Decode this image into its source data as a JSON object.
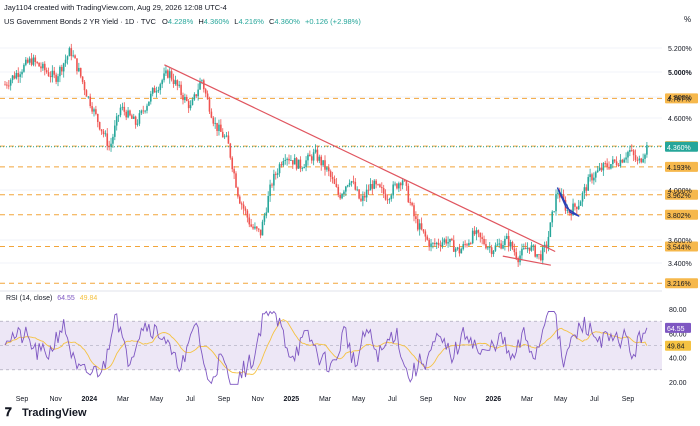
{
  "header": {
    "author_line": "Jay1104 created with TradingView.com, Aug 29, 2026 12:08 UTC-4",
    "symbol": "US Government Bonds 2 YR Yield · 1D · TVC",
    "ohlc": [
      {
        "key": "O",
        "value": "4.228%"
      },
      {
        "key": "H",
        "value": "4.360%"
      },
      {
        "key": "L",
        "value": "4.216%"
      },
      {
        "key": "C",
        "value": "4.360%"
      }
    ],
    "change": "+0.126 (+2.98%)",
    "change_color": "#26a69a",
    "currency_marker": "%"
  },
  "rsi_header": {
    "label": "RSI (14, close)",
    "rsi_value": "64.55",
    "ma_value": "49.84"
  },
  "footer": {
    "brand": "TradingView"
  },
  "colors": {
    "up": "#26a69a",
    "down": "#ef5350",
    "trend": "#e0555f",
    "level": "#f2a53a",
    "level_tag": "#f6b84c",
    "current": "#26a69a",
    "flag": "#2a3fb5",
    "rsi": "#7e57c2",
    "rsi_ma": "#f5c242",
    "rsi_band": "#ede7f6"
  },
  "chart_data": [
    {
      "type": "candlestick",
      "title": "US Government Bonds 2 YR Yield · 1D · TVC",
      "x_ticks": [
        "Sep",
        "Nov",
        "2024",
        "Mar",
        "May",
        "Jul",
        "Sep",
        "Nov",
        "2025",
        "Mar",
        "May",
        "Jul",
        "Sep",
        "Nov",
        "2026",
        "Mar",
        "May",
        "Jul",
        "Sep"
      ],
      "y_tick_labels": [
        "5.200%",
        "4.800%",
        "4.600%",
        "4.000%",
        "3.600%",
        "3.400%"
      ],
      "ylim": [
        3.2,
        5.35
      ],
      "last_price": {
        "value": 4.36,
        "label": "4.360%"
      },
      "highlighted_price": {
        "value": 5.0,
        "label": "5.000%"
      },
      "horizontal_levels": [
        {
          "value": 4.787,
          "label": "4.787%"
        },
        {
          "value": 4.366,
          "label": "4.366%"
        },
        {
          "value": 4.193,
          "label": "4.193%"
        },
        {
          "value": 3.962,
          "label": "3.962%"
        },
        {
          "value": 3.802,
          "label": "3.802%"
        },
        {
          "value": 3.544,
          "label": "3.544%"
        },
        {
          "value": 3.216,
          "label": "3.216%"
        }
      ],
      "price_path": [
        [
          0,
          4.9
        ],
        [
          1.2,
          5.1
        ],
        [
          2.3,
          4.95
        ],
        [
          3.0,
          5.18
        ],
        [
          3.5,
          4.95
        ],
        [
          4.2,
          4.6
        ],
        [
          4.8,
          4.35
        ],
        [
          5.3,
          4.7
        ],
        [
          6.0,
          4.55
        ],
        [
          6.8,
          4.85
        ],
        [
          7.5,
          5.0
        ],
        [
          8.0,
          4.85
        ],
        [
          8.5,
          4.7
        ],
        [
          9.0,
          4.95
        ],
        [
          9.6,
          4.55
        ],
        [
          10.2,
          4.4
        ],
        [
          10.7,
          3.95
        ],
        [
          11.3,
          3.7
        ],
        [
          11.7,
          3.65
        ],
        [
          12.2,
          4.05
        ],
        [
          12.8,
          4.3
        ],
        [
          13.5,
          4.2
        ],
        [
          14.2,
          4.3
        ],
        [
          14.8,
          4.15
        ],
        [
          15.3,
          3.95
        ],
        [
          15.8,
          4.1
        ],
        [
          16.3,
          3.9
        ],
        [
          16.8,
          4.05
        ],
        [
          17.5,
          3.95
        ],
        [
          18.2,
          4.1
        ],
        [
          18.8,
          3.75
        ],
        [
          19.5,
          3.55
        ],
        [
          20.2,
          3.6
        ],
        [
          20.8,
          3.5
        ],
        [
          21.5,
          3.65
        ],
        [
          22.3,
          3.52
        ],
        [
          23.0,
          3.6
        ],
        [
          23.5,
          3.45
        ],
        [
          24.0,
          3.55
        ],
        [
          24.5,
          3.45
        ],
        [
          24.8,
          3.55
        ],
        [
          25.3,
          4.0
        ],
        [
          25.8,
          3.82
        ],
        [
          26.3,
          3.9
        ],
        [
          26.8,
          4.1
        ],
        [
          27.5,
          4.2
        ],
        [
          28.2,
          4.25
        ],
        [
          28.6,
          4.33
        ],
        [
          29.0,
          4.22
        ],
        [
          29.4,
          4.36
        ]
      ],
      "trendlines": [
        {
          "name": "descending-trendline",
          "from": {
            "x": 7.3,
            "y": 5.06
          },
          "to": {
            "x": 25.2,
            "y": 3.5
          }
        },
        {
          "name": "support-trendline",
          "from": {
            "x": 22.8,
            "y": 3.46
          },
          "to": {
            "x": 25.0,
            "y": 3.38
          }
        }
      ],
      "flag_pattern": [
        [
          25.3,
          4.02
        ],
        [
          25.9,
          3.82
        ],
        [
          26.3,
          3.79
        ],
        [
          25.7,
          3.86
        ],
        [
          25.3,
          4.02
        ]
      ]
    },
    {
      "type": "line",
      "title": "RSI (14, close)",
      "series": [
        {
          "name": "RSI",
          "last_value": 64.55
        },
        {
          "name": "RSI-based MA",
          "last_value": 49.84
        }
      ],
      "y_tick_labels": [
        "80.00",
        "60.00",
        "40.00",
        "20.00"
      ],
      "band": [
        30,
        70
      ],
      "ylim": [
        15,
        85
      ]
    }
  ]
}
